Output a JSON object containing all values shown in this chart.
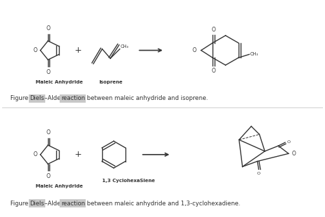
{
  "background_color": "#ffffff",
  "fig_width": 4.74,
  "fig_height": 3.17,
  "dpi": 100,
  "label_maleic1": "Maleic Anhydride",
  "label_isoprene": "Isoprene",
  "label_maleic2": "Maleic Anhydride",
  "label_cyclohexadiene": "1,3 CyclohexaSiene",
  "text_color": "#1a1a1a",
  "highlight_color": "#c8c8c8",
  "line_color": "#333333",
  "line_width": 1.0,
  "font_size_label": 5.0,
  "font_size_caption": 6.2,
  "font_size_atom": 5.5,
  "font_size_group": 4.8
}
